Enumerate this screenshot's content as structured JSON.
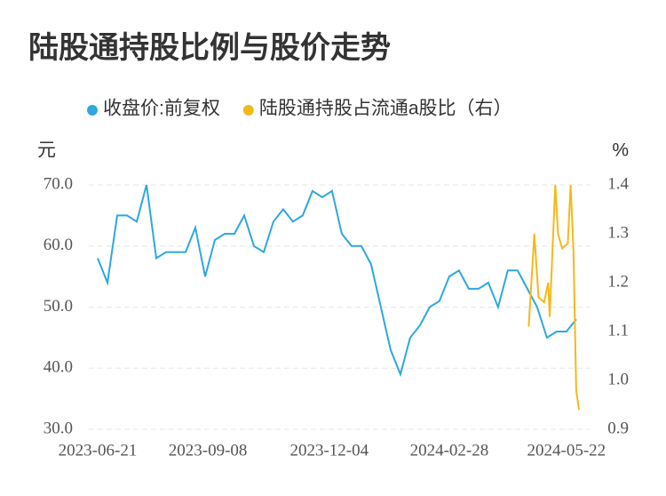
{
  "chart_data": {
    "type": "line",
    "title": "陆股通持股比例与股价走势",
    "y_label": "元",
    "y2_label": "%",
    "xlim": [
      "2023-06-21",
      "2024-05-31"
    ],
    "xticks": [
      "2023-06-21",
      "2023-09-08",
      "2023-12-04",
      "2024-02-28",
      "2024-05-22"
    ],
    "ylim": [
      30,
      70
    ],
    "yticks": [
      {
        "value": 30,
        "label": "30.0"
      },
      {
        "value": 40,
        "label": "40.0"
      },
      {
        "value": 50,
        "label": "50.0"
      },
      {
        "value": 60,
        "label": "60.0"
      },
      {
        "value": 70,
        "label": "70.0"
      }
    ],
    "y2lim": [
      0.9,
      1.4
    ],
    "y2ticks": [
      0.9,
      {
        "value": 1.0,
        "label": "1.0"
      },
      1.1,
      1.2,
      1.3,
      1.4
    ],
    "grid": true,
    "legend": "top",
    "series": [
      {
        "name": "收盘价:前复权",
        "color": "#2ea7e0",
        "x": [
          "2023-06-21",
          "2023-06-28",
          "2023-07-05",
          "2023-07-12",
          "2023-07-19",
          "2023-07-26",
          "2023-08-02",
          "2023-08-09",
          "2023-08-16",
          "2023-08-23",
          "2023-08-30",
          "2023-09-06",
          "2023-09-13",
          "2023-09-20",
          "2023-09-27",
          "2023-10-04",
          "2023-10-11",
          "2023-10-18",
          "2023-10-25",
          "2023-11-01",
          "2023-11-08",
          "2023-11-15",
          "2023-11-22",
          "2023-11-29",
          "2023-12-06",
          "2023-12-13",
          "2023-12-20",
          "2023-12-27",
          "2024-01-03",
          "2024-01-10",
          "2024-01-17",
          "2024-01-24",
          "2024-01-31",
          "2024-02-07",
          "2024-02-14",
          "2024-02-21",
          "2024-02-28",
          "2024-03-06",
          "2024-03-13",
          "2024-03-20",
          "2024-03-27",
          "2024-04-03",
          "2024-04-10",
          "2024-04-17",
          "2024-04-24",
          "2024-05-01",
          "2024-05-08",
          "2024-05-15",
          "2024-05-22",
          "2024-05-29"
        ],
        "values": [
          58,
          54,
          65,
          65,
          64,
          70,
          58,
          59,
          59,
          59,
          63,
          55,
          61,
          62,
          62,
          65,
          60,
          59,
          64,
          66,
          64,
          65,
          69,
          68,
          69,
          62,
          60,
          60,
          57,
          50,
          43,
          39,
          45,
          47,
          50,
          51,
          55,
          56,
          53,
          53,
          54,
          50,
          56,
          56,
          53,
          50,
          45,
          46,
          46,
          48
        ]
      },
      {
        "name": "陆股通持股占流通a股比（右）",
        "color": "#f5b81c",
        "axis": "y2",
        "x": [
          "2024-04-25",
          "2024-04-29",
          "2024-05-02",
          "2024-05-06",
          "2024-05-09",
          "2024-05-10",
          "2024-05-14",
          "2024-05-16",
          "2024-05-19",
          "2024-05-23",
          "2024-05-25",
          "2024-05-27",
          "2024-05-29",
          "2024-05-31"
        ],
        "values": [
          1.11,
          1.3,
          1.17,
          1.16,
          1.2,
          1.13,
          1.4,
          1.3,
          1.27,
          1.28,
          1.4,
          1.27,
          0.98,
          0.94
        ]
      }
    ]
  }
}
